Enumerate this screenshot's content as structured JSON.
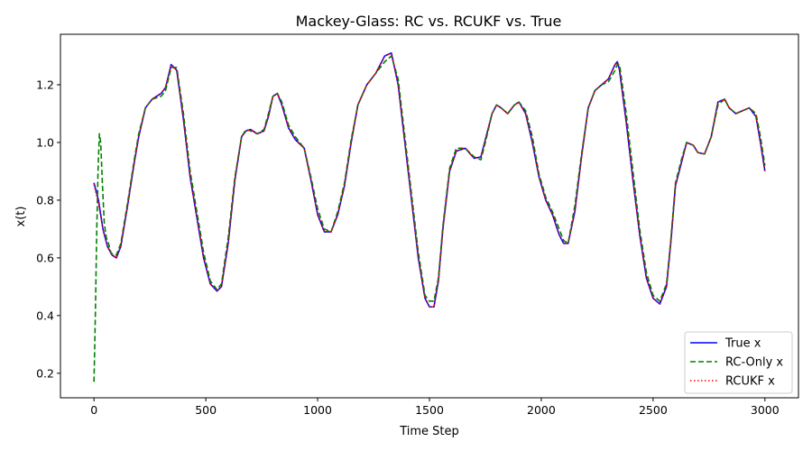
{
  "chart_data": {
    "type": "line",
    "title": "Mackey-Glass: RC vs. RCUKF vs. True",
    "xlabel": "Time Step",
    "ylabel": "x(t)",
    "xlim": [
      -150,
      3150
    ],
    "ylim": [
      0.115,
      1.375
    ],
    "xticks": [
      0,
      500,
      1000,
      1500,
      2000,
      2500,
      3000
    ],
    "yticks": [
      0.2,
      0.4,
      0.6,
      0.8,
      1.0,
      1.2
    ],
    "xtick_labels": [
      "0",
      "500",
      "1000",
      "1500",
      "2000",
      "2500",
      "3000"
    ],
    "ytick_labels": [
      "0.2",
      "0.4",
      "0.6",
      "0.8",
      "1.0",
      "1.2"
    ],
    "grid": false,
    "legend_position": "lower-right",
    "series": [
      {
        "name": "True x",
        "color": "#0000ff",
        "style": "solid",
        "x": [
          0,
          20,
          40,
          60,
          80,
          100,
          120,
          150,
          180,
          200,
          230,
          260,
          300,
          320,
          345,
          370,
          400,
          430,
          460,
          490,
          520,
          550,
          570,
          600,
          630,
          660,
          680,
          700,
          730,
          760,
          780,
          800,
          820,
          840,
          870,
          900,
          940,
          970,
          1000,
          1030,
          1060,
          1090,
          1120,
          1150,
          1180,
          1220,
          1260,
          1300,
          1330,
          1360,
          1390,
          1420,
          1450,
          1480,
          1500,
          1520,
          1540,
          1560,
          1590,
          1620,
          1660,
          1700,
          1730,
          1750,
          1780,
          1800,
          1820,
          1850,
          1880,
          1900,
          1930,
          1960,
          1990,
          2020,
          2050,
          2080,
          2100,
          2120,
          2150,
          2180,
          2210,
          2240,
          2270,
          2300,
          2330,
          2340,
          2350,
          2380,
          2410,
          2440,
          2470,
          2500,
          2530,
          2560,
          2580,
          2600,
          2630,
          2650,
          2680,
          2700,
          2730,
          2760,
          2790,
          2820,
          2840,
          2870,
          2900,
          2930,
          2960,
          2980,
          3000
        ],
        "y": [
          0.86,
          0.8,
          0.7,
          0.64,
          0.61,
          0.6,
          0.64,
          0.78,
          0.93,
          1.02,
          1.12,
          1.15,
          1.17,
          1.19,
          1.27,
          1.25,
          1.08,
          0.88,
          0.74,
          0.6,
          0.51,
          0.485,
          0.5,
          0.65,
          0.87,
          1.02,
          1.04,
          1.045,
          1.03,
          1.04,
          1.09,
          1.16,
          1.17,
          1.13,
          1.05,
          1.01,
          0.98,
          0.87,
          0.75,
          0.69,
          0.69,
          0.75,
          0.85,
          1.0,
          1.13,
          1.2,
          1.24,
          1.3,
          1.31,
          1.2,
          1.0,
          0.8,
          0.6,
          0.46,
          0.43,
          0.43,
          0.52,
          0.7,
          0.9,
          0.97,
          0.98,
          0.945,
          0.95,
          1.01,
          1.1,
          1.13,
          1.12,
          1.1,
          1.13,
          1.14,
          1.1,
          1.0,
          0.88,
          0.8,
          0.75,
          0.68,
          0.65,
          0.65,
          0.76,
          0.95,
          1.12,
          1.18,
          1.2,
          1.22,
          1.27,
          1.28,
          1.25,
          1.07,
          0.87,
          0.68,
          0.53,
          0.46,
          0.44,
          0.5,
          0.66,
          0.85,
          0.94,
          1.0,
          0.99,
          0.965,
          0.96,
          1.02,
          1.14,
          1.15,
          1.12,
          1.1,
          1.11,
          1.12,
          1.09,
          1.0,
          0.9
        ]
      },
      {
        "name": "RC-Only x",
        "color": "#008000",
        "style": "dashed",
        "x": [
          0,
          6,
          12,
          18,
          24,
          30,
          38,
          46,
          55,
          65,
          75,
          85,
          100,
          120,
          150,
          180,
          200,
          230,
          260,
          300,
          320,
          345,
          370,
          400,
          430,
          460,
          490,
          520,
          550,
          570,
          600,
          630,
          660,
          680,
          700,
          730,
          760,
          780,
          800,
          820,
          840,
          870,
          900,
          940,
          970,
          1000,
          1030,
          1060,
          1090,
          1120,
          1150,
          1180,
          1220,
          1260,
          1300,
          1330,
          1360,
          1390,
          1420,
          1450,
          1480,
          1500,
          1520,
          1540,
          1560,
          1590,
          1620,
          1660,
          1700,
          1730,
          1750,
          1780,
          1800,
          1820,
          1850,
          1880,
          1900,
          1930,
          1960,
          1990,
          2020,
          2050,
          2080,
          2100,
          2120,
          2150,
          2180,
          2210,
          2240,
          2270,
          2300,
          2330,
          2340,
          2350,
          2380,
          2410,
          2440,
          2470,
          2500,
          2530,
          2560,
          2580,
          2600,
          2630,
          2650,
          2680,
          2700,
          2730,
          2760,
          2790,
          2820,
          2840,
          2870,
          2900,
          2930,
          2960,
          2980,
          3000
        ],
        "y": [
          0.17,
          0.4,
          0.68,
          0.9,
          1.03,
          1.0,
          0.85,
          0.72,
          0.67,
          0.65,
          0.62,
          0.61,
          0.61,
          0.65,
          0.79,
          0.94,
          1.03,
          1.12,
          1.15,
          1.16,
          1.18,
          1.26,
          1.26,
          1.1,
          0.9,
          0.76,
          0.62,
          0.52,
          0.49,
          0.51,
          0.67,
          0.88,
          1.02,
          1.045,
          1.04,
          1.03,
          1.045,
          1.1,
          1.16,
          1.17,
          1.14,
          1.06,
          1.02,
          0.98,
          0.88,
          0.77,
          0.7,
          0.69,
          0.76,
          0.86,
          1.01,
          1.13,
          1.2,
          1.24,
          1.28,
          1.3,
          1.22,
          1.02,
          0.82,
          0.62,
          0.47,
          0.45,
          0.45,
          0.53,
          0.71,
          0.91,
          0.98,
          0.98,
          0.95,
          0.94,
          1.0,
          1.1,
          1.13,
          1.12,
          1.1,
          1.13,
          1.14,
          1.11,
          1.02,
          0.89,
          0.81,
          0.76,
          0.7,
          0.66,
          0.65,
          0.78,
          0.96,
          1.12,
          1.18,
          1.2,
          1.21,
          1.25,
          1.27,
          1.27,
          1.1,
          0.9,
          0.7,
          0.55,
          0.47,
          0.45,
          0.51,
          0.67,
          0.86,
          0.95,
          1.0,
          0.99,
          0.965,
          0.96,
          1.02,
          1.13,
          1.15,
          1.12,
          1.1,
          1.11,
          1.12,
          1.1,
          1.02,
          0.92
        ]
      },
      {
        "name": "RCUKF x",
        "color": "#ff0000",
        "style": "dotted",
        "x": [
          0,
          20,
          40,
          60,
          80,
          100,
          120,
          150,
          180,
          200,
          230,
          260,
          300,
          320,
          345,
          370,
          400,
          430,
          460,
          490,
          520,
          550,
          570,
          600,
          630,
          660,
          680,
          700,
          730,
          760,
          780,
          800,
          820,
          840,
          870,
          900,
          940,
          970,
          1000,
          1030,
          1060,
          1090,
          1120,
          1150,
          1180,
          1220,
          1260,
          1300,
          1330,
          1360,
          1390,
          1420,
          1450,
          1480,
          1500,
          1520,
          1540,
          1560,
          1590,
          1620,
          1660,
          1700,
          1730,
          1750,
          1780,
          1800,
          1820,
          1850,
          1880,
          1900,
          1930,
          1960,
          1990,
          2020,
          2050,
          2080,
          2100,
          2120,
          2150,
          2180,
          2210,
          2240,
          2270,
          2300,
          2330,
          2340,
          2350,
          2380,
          2410,
          2440,
          2470,
          2500,
          2530,
          2560,
          2580,
          2600,
          2630,
          2650,
          2680,
          2700,
          2730,
          2760,
          2790,
          2820,
          2840,
          2870,
          2900,
          2930,
          2960,
          2980,
          3000
        ],
        "y": [
          0.855,
          0.79,
          0.7,
          0.64,
          0.61,
          0.6,
          0.64,
          0.78,
          0.93,
          1.02,
          1.12,
          1.15,
          1.17,
          1.19,
          1.27,
          1.25,
          1.08,
          0.88,
          0.74,
          0.6,
          0.51,
          0.485,
          0.5,
          0.65,
          0.87,
          1.02,
          1.04,
          1.045,
          1.03,
          1.04,
          1.09,
          1.16,
          1.17,
          1.13,
          1.05,
          1.01,
          0.98,
          0.87,
          0.75,
          0.69,
          0.69,
          0.75,
          0.85,
          1.0,
          1.13,
          1.2,
          1.24,
          1.3,
          1.31,
          1.2,
          1.0,
          0.8,
          0.6,
          0.46,
          0.43,
          0.43,
          0.52,
          0.7,
          0.9,
          0.97,
          0.98,
          0.945,
          0.95,
          1.01,
          1.1,
          1.13,
          1.12,
          1.1,
          1.13,
          1.14,
          1.1,
          1.0,
          0.88,
          0.8,
          0.75,
          0.68,
          0.65,
          0.65,
          0.76,
          0.95,
          1.12,
          1.18,
          1.2,
          1.22,
          1.27,
          1.28,
          1.25,
          1.07,
          0.87,
          0.68,
          0.53,
          0.46,
          0.44,
          0.5,
          0.66,
          0.85,
          0.94,
          1.0,
          0.99,
          0.965,
          0.96,
          1.02,
          1.14,
          1.15,
          1.12,
          1.1,
          1.11,
          1.12,
          1.09,
          1.0,
          0.9
        ]
      }
    ]
  }
}
